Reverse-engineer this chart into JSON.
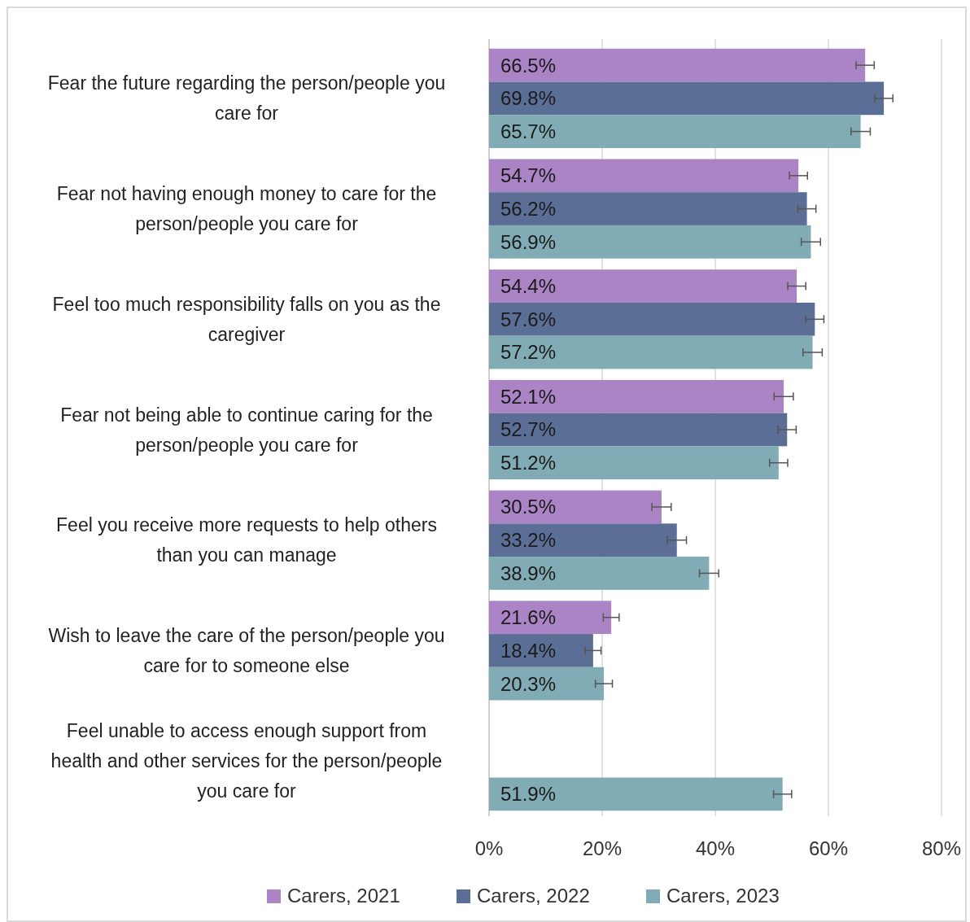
{
  "chart_data": {
    "type": "bar",
    "orientation": "horizontal",
    "categories": [
      "Fear the future regarding the person/people you care for",
      "Fear not having enough money to care for the person/people you care for",
      "Feel too much responsibility falls on you as the caregiver",
      "Fear not being able to continue caring for the person/people you care for",
      "Feel you receive more requests to help others than you can manage",
      "Wish to leave the care of the person/people you care for to someone else",
      "Feel unable to access enough support from health and other services for the person/people you care for"
    ],
    "series": [
      {
        "name": "Carers, 2021",
        "color": "#ab84c6",
        "values": [
          66.5,
          54.7,
          54.4,
          52.1,
          30.5,
          21.6,
          null
        ],
        "errors": [
          1.6,
          1.6,
          1.6,
          1.7,
          1.7,
          1.4,
          null
        ],
        "value_labels": [
          "66.5%",
          "54.7%",
          "54.4%",
          "52.1%",
          "30.5%",
          "21.6%",
          null
        ]
      },
      {
        "name": "Carers, 2022",
        "color": "#5b6f96",
        "values": [
          69.8,
          56.2,
          57.6,
          52.7,
          33.2,
          18.4,
          null
        ],
        "errors": [
          1.6,
          1.6,
          1.6,
          1.6,
          1.7,
          1.4,
          null
        ],
        "value_labels": [
          "69.8%",
          "56.2%",
          "57.6%",
          "52.7%",
          "33.2%",
          "18.4%",
          null
        ]
      },
      {
        "name": "Carers, 2023",
        "color": "#81abb5",
        "values": [
          65.7,
          56.9,
          57.2,
          51.2,
          38.9,
          20.3,
          51.9
        ],
        "errors": [
          1.7,
          1.7,
          1.7,
          1.6,
          1.7,
          1.5,
          1.6
        ],
        "value_labels": [
          "65.7%",
          "56.9%",
          "57.2%",
          "51.2%",
          "38.9%",
          "20.3%",
          "51.9%"
        ]
      }
    ],
    "xlim": [
      0,
      80
    ],
    "xticks": [
      {
        "value": 0,
        "label": "0%"
      },
      {
        "value": 20,
        "label": "20%"
      },
      {
        "value": 40,
        "label": "40%"
      },
      {
        "value": 60,
        "label": "60%"
      },
      {
        "value": 80,
        "label": "80%"
      }
    ],
    "grid": "x",
    "legend": "bottom"
  }
}
